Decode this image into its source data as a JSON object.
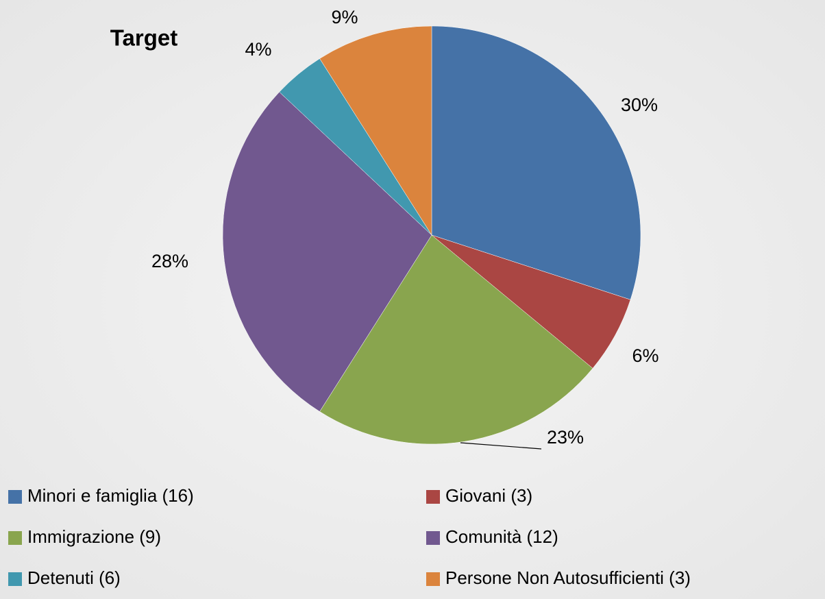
{
  "chart_data": {
    "type": "pie",
    "title": "Target",
    "categories": [
      "Minori e famiglia (16)",
      "Giovani (3)",
      "Immigrazione (9)",
      "Comunità (12)",
      "Detenuti (6)",
      "Persone Non Autosufficienti (3)"
    ],
    "values": [
      30,
      6,
      23,
      28,
      4,
      9
    ],
    "value_labels": [
      "30%",
      "6%",
      "23%",
      "28%",
      "4%",
      "9%"
    ],
    "colors": [
      "#4572a7",
      "#aa4643",
      "#89a54e",
      "#71588f",
      "#4198af",
      "#db843d"
    ]
  }
}
